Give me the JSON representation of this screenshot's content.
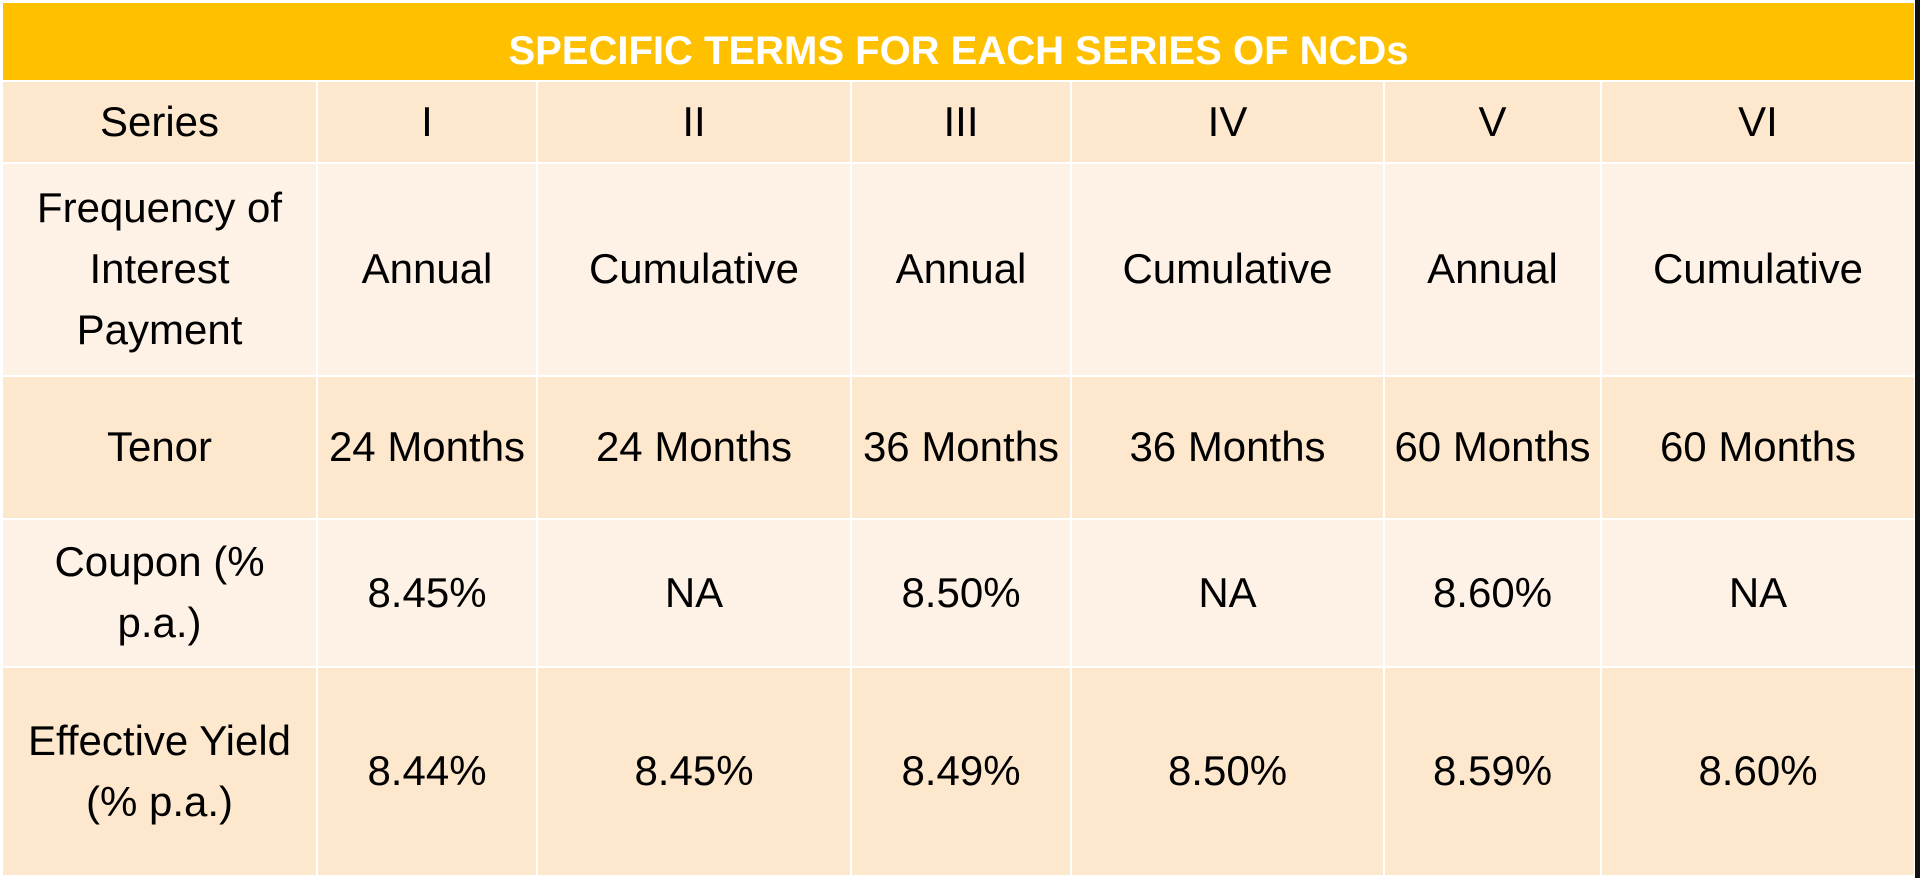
{
  "title": "SPECIFIC TERMS FOR EACH SERIES OF NCDs",
  "colors": {
    "title_bg": "#FFC000",
    "title_text": "#FFFFFF",
    "row_dark": "#FDE7CD",
    "row_light": "#FEF2E6",
    "text": "#000000"
  },
  "table": {
    "header": {
      "label": "Series",
      "columns": [
        "I",
        "II",
        "III",
        "IV",
        "V",
        "VI"
      ]
    },
    "rows": [
      {
        "label": "Frequency of Interest Payment",
        "values": [
          "Annual",
          "Cumulative",
          "Annual",
          "Cumulative",
          "Annual",
          "Cumulative"
        ]
      },
      {
        "label": "Tenor",
        "values": [
          "24 Months",
          "24 Months",
          "36 Months",
          "36 Months",
          "60 Months",
          "60 Months"
        ]
      },
      {
        "label": "Coupon (% p.a.)",
        "values": [
          "8.45%",
          "NA",
          "8.50%",
          "NA",
          "8.60%",
          "NA"
        ]
      },
      {
        "label": "Effective Yield (% p.a.)",
        "values": [
          "8.44%",
          "8.45%",
          "8.49%",
          "8.50%",
          "8.59%",
          "8.60%"
        ]
      }
    ]
  }
}
